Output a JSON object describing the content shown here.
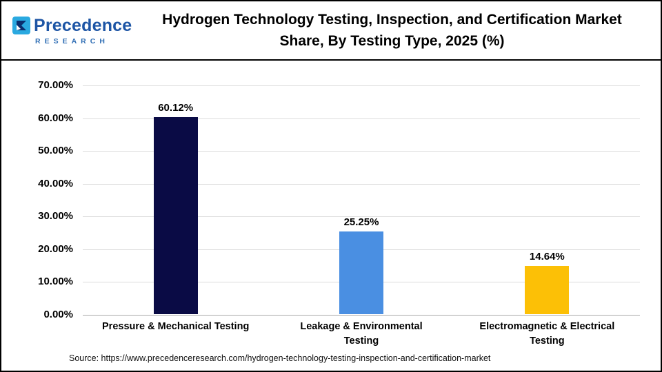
{
  "header": {
    "logo": {
      "brand": "Precedence",
      "sub": "RESEARCH"
    },
    "title_lines": [
      "Hydrogen Technology Testing, Inspection, and Certification Market",
      "Share, By Testing Type, 2025 (%)"
    ]
  },
  "chart_data": {
    "type": "bar",
    "title": "Hydrogen Technology Testing, Inspection, and Certification Market Share, By Testing Type, 2025 (%)",
    "categories": [
      "Pressure & Mechanical Testing",
      "Leakage & Environmental Testing",
      "Electromagnetic & Electrical Testing"
    ],
    "categories_lines": [
      [
        "Pressure & Mechanical Testing"
      ],
      [
        "Leakage & Environmental",
        "Testing"
      ],
      [
        "Electromagnetic & Electrical",
        "Testing"
      ]
    ],
    "values": [
      60.12,
      25.25,
      14.64
    ],
    "value_labels": [
      "60.12%",
      "25.25%",
      "14.64%"
    ],
    "bar_colors": [
      "#0a0b45",
      "#4a8fe2",
      "#fcc006"
    ],
    "xlabel": "",
    "ylabel": "",
    "ylim": [
      0,
      70
    ],
    "ytick_step": 10,
    "yticks": [
      "0.00%",
      "10.00%",
      "20.00%",
      "30.00%",
      "40.00%",
      "50.00%",
      "60.00%",
      "70.00%"
    ],
    "grid": true,
    "legend": false
  },
  "footer": {
    "source": "Source: https://www.precedenceresearch.com/hydrogen-technology-testing-inspection-and-certification-market"
  },
  "colors": {
    "brand_blue": "#1d55a5",
    "gridline": "#dcdcdc"
  }
}
